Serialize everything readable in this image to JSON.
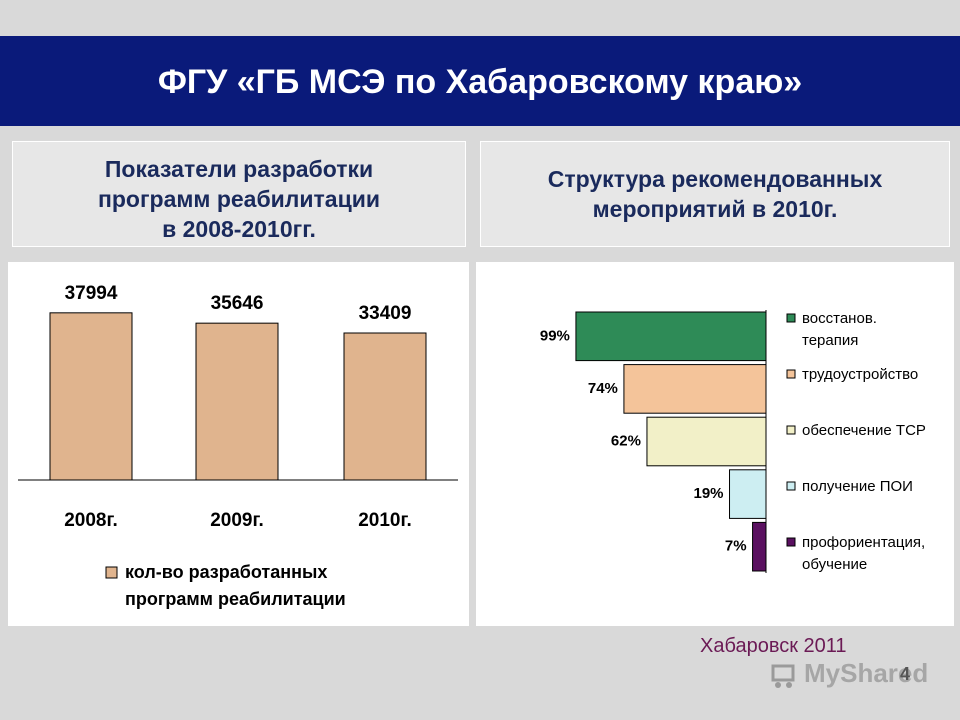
{
  "header": {
    "title": "ФГУ «ГБ МСЭ по Хабаровскому краю»"
  },
  "left_box": {
    "lines": [
      "Показатели разработки",
      "программ реабилитации",
      "в 2008-2010гг."
    ]
  },
  "right_box": {
    "lines": [
      "Структура рекомендованных",
      "мероприятий в 2010г."
    ]
  },
  "footer": {
    "city_year": "Хабаровск 2011",
    "slide_number": "4",
    "watermark": "MyShared"
  },
  "colors": {
    "header_bg": "#0a1a7a",
    "bar_fill": "#e0b48e",
    "series": [
      "#2e8b57",
      "#f4c49a",
      "#f2f0c8",
      "#cdeef2",
      "#5a1060"
    ]
  },
  "chart_data": [
    {
      "type": "bar",
      "categories": [
        "2008г.",
        "2009г.",
        "2010г."
      ],
      "values": [
        37994,
        35646,
        33409
      ],
      "data_labels": [
        "37994",
        "35646",
        "33409"
      ],
      "legend": "top: кол-во разработанных программ реабилитации",
      "legend_lines": [
        "кол-во разработанных",
        "программ реабилитации"
      ],
      "legend_placement": "bottom",
      "grid": false,
      "ylim": [
        0,
        45000
      ]
    },
    {
      "type": "bar",
      "orientation": "horizontal",
      "categories": [
        "восстанов. терапия",
        "трудоустройство",
        "обеспечение ТСР",
        "получение ПОИ",
        "профориентация, обучение"
      ],
      "values": [
        99,
        74,
        62,
        19,
        7
      ],
      "unit": "%",
      "data_labels": [
        "99%",
        "74%",
        "62%",
        "19%",
        "7%"
      ],
      "legend": [
        {
          "lines": [
            "восстанов.",
            "терапия"
          ]
        },
        {
          "lines": [
            "трудоустройство"
          ]
        },
        {
          "lines": [
            "обеспечение ТСР"
          ]
        },
        {
          "lines": [
            "получение ПОИ"
          ]
        },
        {
          "lines": [
            "профориентация,",
            "обучение"
          ]
        }
      ],
      "legend_placement": "right",
      "grid": false,
      "xlim": [
        0,
        100
      ]
    }
  ]
}
